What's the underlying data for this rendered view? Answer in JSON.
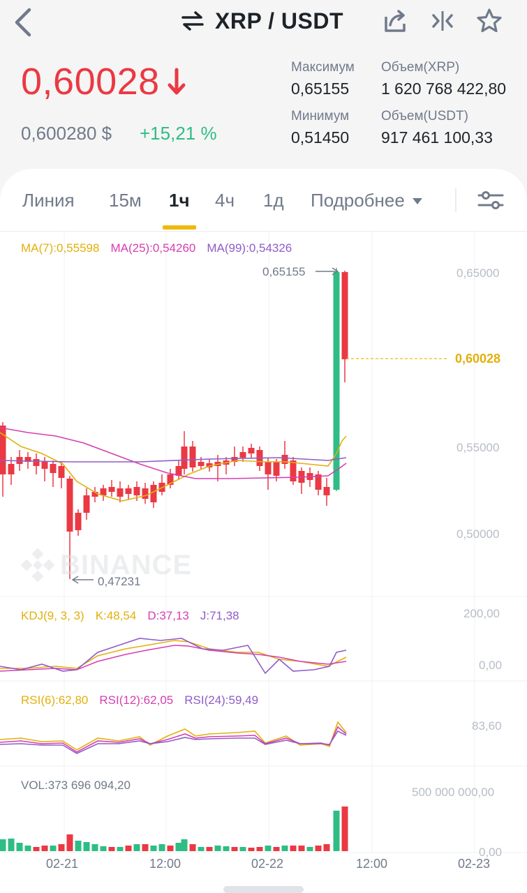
{
  "header": {
    "pair_title": "XRP / USDT",
    "icons": [
      "back-icon",
      "swap-icon",
      "share-icon",
      "compare-icon",
      "star-icon"
    ]
  },
  "price": {
    "last": "0,60028",
    "usd": "0,600280 $",
    "change": "+15,21 %",
    "color_down": "#ea3943",
    "color_up": "#2ebd85"
  },
  "stats": {
    "high_label": "Максимум",
    "high_value": "0,65155",
    "low_label": "Минимум",
    "low_value": "0,51450",
    "vol_base_label": "Объем(XRP)",
    "vol_base_value": "1 620 768 422,80",
    "vol_quote_label": "Объем(USDT)",
    "vol_quote_value": "917 461 100,33"
  },
  "tabs": [
    {
      "label": "Линия",
      "active": false
    },
    {
      "label": "15м",
      "active": false
    },
    {
      "label": "1ч",
      "active": true
    },
    {
      "label": "4ч",
      "active": false
    },
    {
      "label": "1д",
      "active": false
    },
    {
      "label": "Подробнее",
      "active": false
    }
  ],
  "indicators": {
    "ma7": "MA(7):0,55598",
    "ma25": "MA(25):0,54260",
    "ma99": "MA(99):0,54326",
    "kdj_name": "KDJ(9, 3, 3)",
    "kdj_k": "K:48,54",
    "kdj_d": "D:37,13",
    "kdj_j": "J:71,38",
    "rsi6": "RSI(6):62,80",
    "rsi12": "RSI(12):62,05",
    "rsi24": "RSI(24):59,49",
    "vol": "VOL:373 696 094,20"
  },
  "axis": {
    "price_ticks": [
      "0,65000",
      "0,55000",
      "0,50000"
    ],
    "current_price": "0,60028",
    "high_marker": "0,65155",
    "low_marker": "0,47231",
    "kdj_ticks": [
      "200,00",
      "0,00"
    ],
    "rsi_tick": "83,60",
    "vol_ticks": [
      "500 000 000,00",
      "0,00"
    ],
    "x_labels": [
      "02-21",
      "12:00",
      "02-22",
      "12:00",
      "02-23"
    ]
  },
  "watermark": "BINANCE",
  "colors": {
    "up": "#2ebd85",
    "down": "#ea3943",
    "accent": "#f0b90b",
    "ma7": "#e2b00b",
    "ma25": "#d63eb0",
    "ma99": "#8e5cc8"
  }
}
